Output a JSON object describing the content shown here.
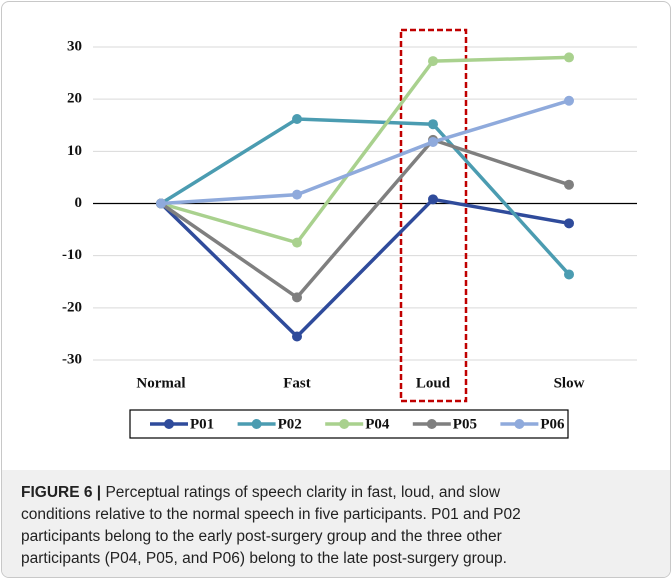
{
  "chart_data": {
    "type": "line",
    "categories": [
      "Normal",
      "Fast",
      "Loud",
      "Slow"
    ],
    "series": [
      {
        "name": "P01",
        "color": "#2f4b9b",
        "values": [
          0,
          -25.5,
          0.8,
          -3.8
        ]
      },
      {
        "name": "P02",
        "color": "#4b9cb1",
        "values": [
          0,
          16.2,
          15.2,
          -13.6
        ]
      },
      {
        "name": "P04",
        "color": "#a9d18e",
        "values": [
          0,
          -7.5,
          27.3,
          28
        ]
      },
      {
        "name": "P05",
        "color": "#7f7f7f",
        "values": [
          0,
          -18,
          12.2,
          3.6
        ]
      },
      {
        "name": "P06",
        "color": "#8faadc",
        "values": [
          0,
          1.7,
          11.8,
          19.7
        ]
      }
    ],
    "ylim": [
      -30,
      30
    ],
    "yticks": [
      -30,
      -20,
      -10,
      0,
      10,
      20,
      30
    ],
    "grid": true,
    "highlight_category": 2,
    "highlight_color": "#c00000",
    "legend": "bottom"
  },
  "caption": {
    "label": "FIGURE 6 |",
    "lines": [
      "Perceptual ratings of speech clarity in fast, loud, and slow",
      "conditions relative to the normal speech in five participants. P01 and P02",
      "participants belong to the early post-surgery group and the three other",
      "participants (P04, P05, and P06) belong to the late post-surgery group."
    ]
  }
}
